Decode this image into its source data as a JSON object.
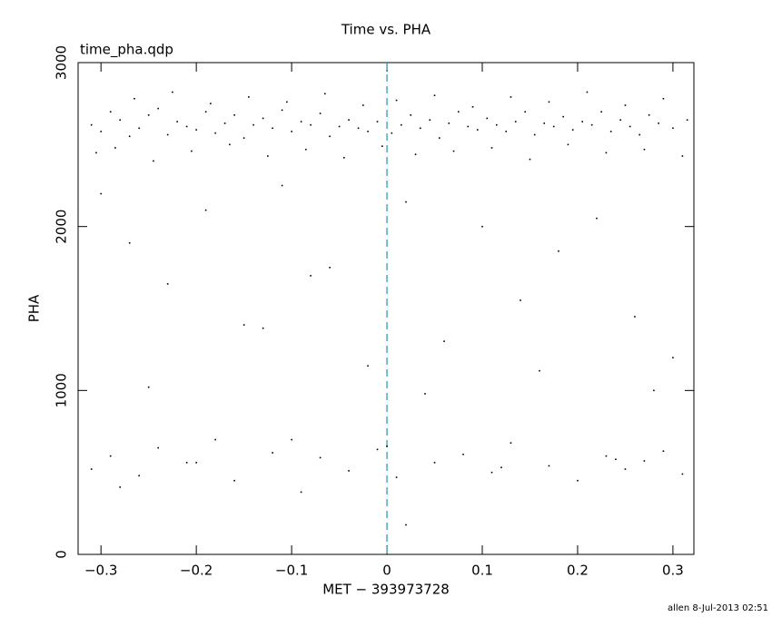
{
  "chart_data": {
    "type": "scatter",
    "title": "Time vs. PHA",
    "subtitle": "time_pha.qdp",
    "x_label": "MET − 393973728",
    "y_label": "PHA",
    "footer": "allen  8-Jul-2013 02:51",
    "xlim": [
      -0.324,
      0.322
    ],
    "ylim": [
      0,
      3000
    ],
    "xticks": [
      {
        "value": -0.3,
        "label": "−0.3"
      },
      {
        "value": -0.2,
        "label": "−0.2"
      },
      {
        "value": -0.1,
        "label": "−0.1"
      },
      0,
      0.1,
      0.2,
      0.3
    ],
    "yticks": [
      0,
      1000,
      2000,
      3000
    ],
    "vline": 0,
    "vline_color": "#1a9aa8",
    "color": "#000000",
    "x": [
      -0.31,
      -0.3,
      -0.29,
      -0.28,
      -0.27,
      -0.26,
      -0.25,
      -0.24,
      -0.23,
      -0.22,
      -0.21,
      -0.2,
      -0.19,
      -0.18,
      -0.17,
      -0.16,
      -0.15,
      -0.14,
      -0.13,
      -0.12,
      -0.11,
      -0.1,
      -0.09,
      -0.08,
      -0.07,
      -0.06,
      -0.05,
      -0.04,
      -0.03,
      -0.02,
      -0.01,
      0.005,
      0.015,
      0.025,
      0.035,
      0.045,
      0.055,
      0.065,
      0.075,
      0.085,
      0.095,
      0.105,
      0.115,
      0.125,
      0.135,
      0.145,
      0.155,
      0.165,
      0.175,
      0.185,
      0.195,
      0.205,
      0.215,
      0.225,
      0.235,
      0.245,
      0.255,
      0.265,
      0.275,
      0.285,
      0.3,
      0.315,
      -0.305,
      -0.285,
      -0.265,
      -0.245,
      -0.225,
      -0.205,
      -0.185,
      -0.165,
      -0.145,
      -0.125,
      -0.105,
      -0.085,
      -0.065,
      -0.045,
      -0.025,
      -0.005,
      0.01,
      0.03,
      0.05,
      0.07,
      0.09,
      0.11,
      0.13,
      0.15,
      0.17,
      0.19,
      0.21,
      0.23,
      0.25,
      0.27,
      0.29,
      0.31,
      -0.3,
      -0.27,
      -0.23,
      -0.19,
      -0.15,
      -0.11,
      -0.06,
      -0.02,
      0.02,
      0.06,
      0.1,
      0.14,
      0.18,
      0.22,
      0.26,
      0.3,
      -0.25,
      -0.13,
      0.04,
      0.16,
      0.28,
      -0.08,
      -0.31,
      -0.29,
      -0.26,
      -0.24,
      -0.21,
      -0.18,
      -0.16,
      -0.12,
      -0.09,
      -0.07,
      -0.04,
      -0.01,
      0.01,
      0.02,
      0.05,
      0.08,
      0.11,
      0.13,
      0.17,
      0.2,
      0.23,
      0.25,
      0.27,
      0.29,
      0.31,
      -0.28,
      -0.2,
      -0.1,
      0.0,
      0.12,
      0.24
    ],
    "y": [
      2620,
      2580,
      2700,
      2650,
      2550,
      2600,
      2680,
      2720,
      2560,
      2640,
      2610,
      2590,
      2700,
      2570,
      2630,
      2680,
      2540,
      2620,
      2660,
      2600,
      2710,
      2580,
      2640,
      2620,
      2690,
      2550,
      2610,
      2650,
      2600,
      2580,
      2640,
      2570,
      2620,
      2680,
      2600,
      2650,
      2540,
      2630,
      2700,
      2610,
      2590,
      2660,
      2620,
      2580,
      2640,
      2700,
      2560,
      2630,
      2610,
      2670,
      2590,
      2640,
      2620,
      2700,
      2580,
      2650,
      2610,
      2560,
      2680,
      2630,
      2600,
      2650,
      2450,
      2480,
      2780,
      2400,
      2820,
      2460,
      2750,
      2500,
      2790,
      2430,
      2760,
      2470,
      2810,
      2420,
      2740,
      2490,
      2770,
      2440,
      2800,
      2460,
      2730,
      2480,
      2790,
      2410,
      2760,
      2500,
      2820,
      2450,
      2740,
      2470,
      2780,
      2430,
      2200,
      1900,
      1650,
      2100,
      1400,
      2250,
      1750,
      1150,
      2150,
      1300,
      2000,
      1550,
      1850,
      2050,
      1450,
      1200,
      1020,
      1380,
      980,
      1120,
      1000,
      1700,
      520,
      600,
      480,
      650,
      560,
      700,
      450,
      620,
      380,
      590,
      510,
      640,
      470,
      180,
      560,
      610,
      500,
      680,
      540,
      450,
      600,
      520,
      570,
      630,
      490,
      410,
      560,
      700,
      660,
      530,
      580
    ]
  }
}
